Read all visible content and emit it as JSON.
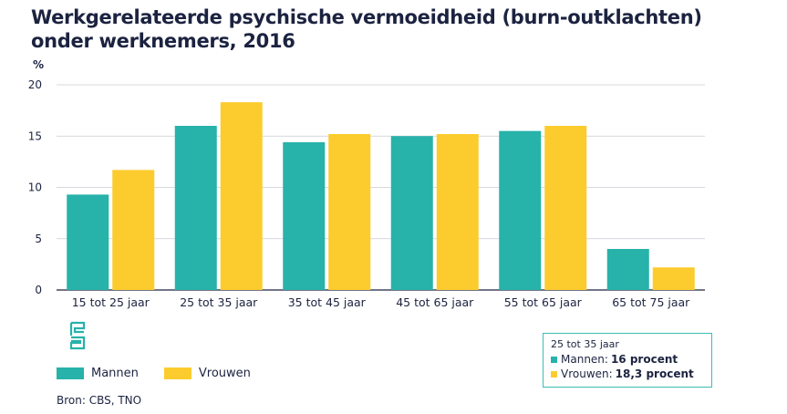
{
  "title": "Werkgerelateerde psychische vermoeidheid (burn-outklachten) onder werknemers, 2016",
  "source": "Bron: CBS, TNO",
  "colors": {
    "mannen": "#27b2aa",
    "vrouwen": "#fccc2e",
    "axis": "#1c2340",
    "grid": "#c9ccd3"
  },
  "icons": {
    "logo": "cbs-logo-icon"
  },
  "infobox": {
    "header": "25 tot 35 jaar",
    "mannen_label": "Mannen:",
    "mannen_value": "16 procent",
    "vrouwen_label": "Vrouwen:",
    "vrouwen_value": "18,3 procent"
  },
  "chart_data": {
    "type": "bar",
    "title": "Werkgerelateerde psychische vermoeidheid (burn-outklachten) onder werknemers, 2016",
    "ylabel": "%",
    "xlabel": "",
    "ylim": [
      0,
      20
    ],
    "yticks": [
      0,
      5,
      10,
      15,
      20
    ],
    "grid": true,
    "legend": "bottom-left",
    "categories": [
      "15 tot 25 jaar",
      "25 tot 35 jaar",
      "35 tot 45 jaar",
      "45 tot 65 jaar",
      "55 tot 65 jaar",
      "65 tot 75 jaar"
    ],
    "series": [
      {
        "name": "Mannen",
        "values": [
          9.3,
          16.0,
          14.4,
          15.0,
          15.5,
          4.0
        ]
      },
      {
        "name": "Vrouwen",
        "values": [
          11.7,
          18.3,
          15.2,
          15.2,
          16.0,
          2.2
        ]
      }
    ]
  }
}
